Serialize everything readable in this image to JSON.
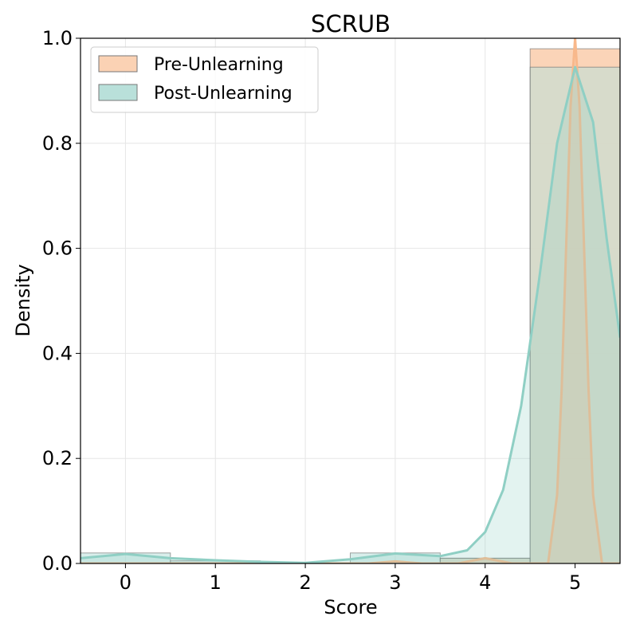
{
  "chart_data": {
    "type": "histogram-kde",
    "title": "SCRUB",
    "xlabel": "Score",
    "ylabel": "Density",
    "xlim": [
      -0.5,
      5.5
    ],
    "ylim": [
      0,
      1.0
    ],
    "xticks": [
      0,
      1,
      2,
      3,
      4,
      5
    ],
    "yticks": [
      0.0,
      0.2,
      0.4,
      0.6,
      0.8,
      1.0
    ],
    "ytick_labels": [
      "0.0",
      "0.2",
      "0.4",
      "0.6",
      "0.8",
      "1.0"
    ],
    "grid": true,
    "legend": "top-left",
    "series": [
      {
        "name": "Pre-Unlearning",
        "color": "#f8b88b",
        "bar_color": "#fbd2b4",
        "bin_values": [
          0.0,
          0.0,
          0.0,
          0.0,
          0.01,
          0.98
        ],
        "kde": [
          {
            "x": -0.5,
            "y": 0.0
          },
          {
            "x": 2.7,
            "y": 0.0
          },
          {
            "x": 3.0,
            "y": 0.004
          },
          {
            "x": 3.3,
            "y": 0.0
          },
          {
            "x": 3.7,
            "y": 0.0
          },
          {
            "x": 4.0,
            "y": 0.01
          },
          {
            "x": 4.3,
            "y": 0.0
          },
          {
            "x": 4.7,
            "y": 0.0
          },
          {
            "x": 4.8,
            "y": 0.13
          },
          {
            "x": 4.85,
            "y": 0.33
          },
          {
            "x": 4.9,
            "y": 0.6
          },
          {
            "x": 4.95,
            "y": 0.87
          },
          {
            "x": 5.0,
            "y": 1.0
          },
          {
            "x": 5.05,
            "y": 0.87
          },
          {
            "x": 5.1,
            "y": 0.6
          },
          {
            "x": 5.15,
            "y": 0.33
          },
          {
            "x": 5.2,
            "y": 0.13
          },
          {
            "x": 5.3,
            "y": 0.0
          },
          {
            "x": 5.5,
            "y": 0.0
          }
        ]
      },
      {
        "name": "Post-Unlearning",
        "color": "#8fcfc4",
        "bar_color": "#b9e0da",
        "bin_values": [
          0.02,
          0.005,
          0.0,
          0.02,
          0.01,
          0.945
        ],
        "kde": [
          {
            "x": -0.5,
            "y": 0.01
          },
          {
            "x": 0.0,
            "y": 0.018
          },
          {
            "x": 0.5,
            "y": 0.01
          },
          {
            "x": 1.0,
            "y": 0.006
          },
          {
            "x": 1.5,
            "y": 0.003
          },
          {
            "x": 2.0,
            "y": 0.001
          },
          {
            "x": 2.5,
            "y": 0.008
          },
          {
            "x": 3.0,
            "y": 0.019
          },
          {
            "x": 3.5,
            "y": 0.014
          },
          {
            "x": 3.8,
            "y": 0.025
          },
          {
            "x": 4.0,
            "y": 0.06
          },
          {
            "x": 4.2,
            "y": 0.14
          },
          {
            "x": 4.4,
            "y": 0.3
          },
          {
            "x": 4.6,
            "y": 0.54
          },
          {
            "x": 4.8,
            "y": 0.8
          },
          {
            "x": 5.0,
            "y": 0.945
          },
          {
            "x": 5.2,
            "y": 0.84
          },
          {
            "x": 5.35,
            "y": 0.62
          },
          {
            "x": 5.5,
            "y": 0.43
          }
        ]
      }
    ]
  }
}
